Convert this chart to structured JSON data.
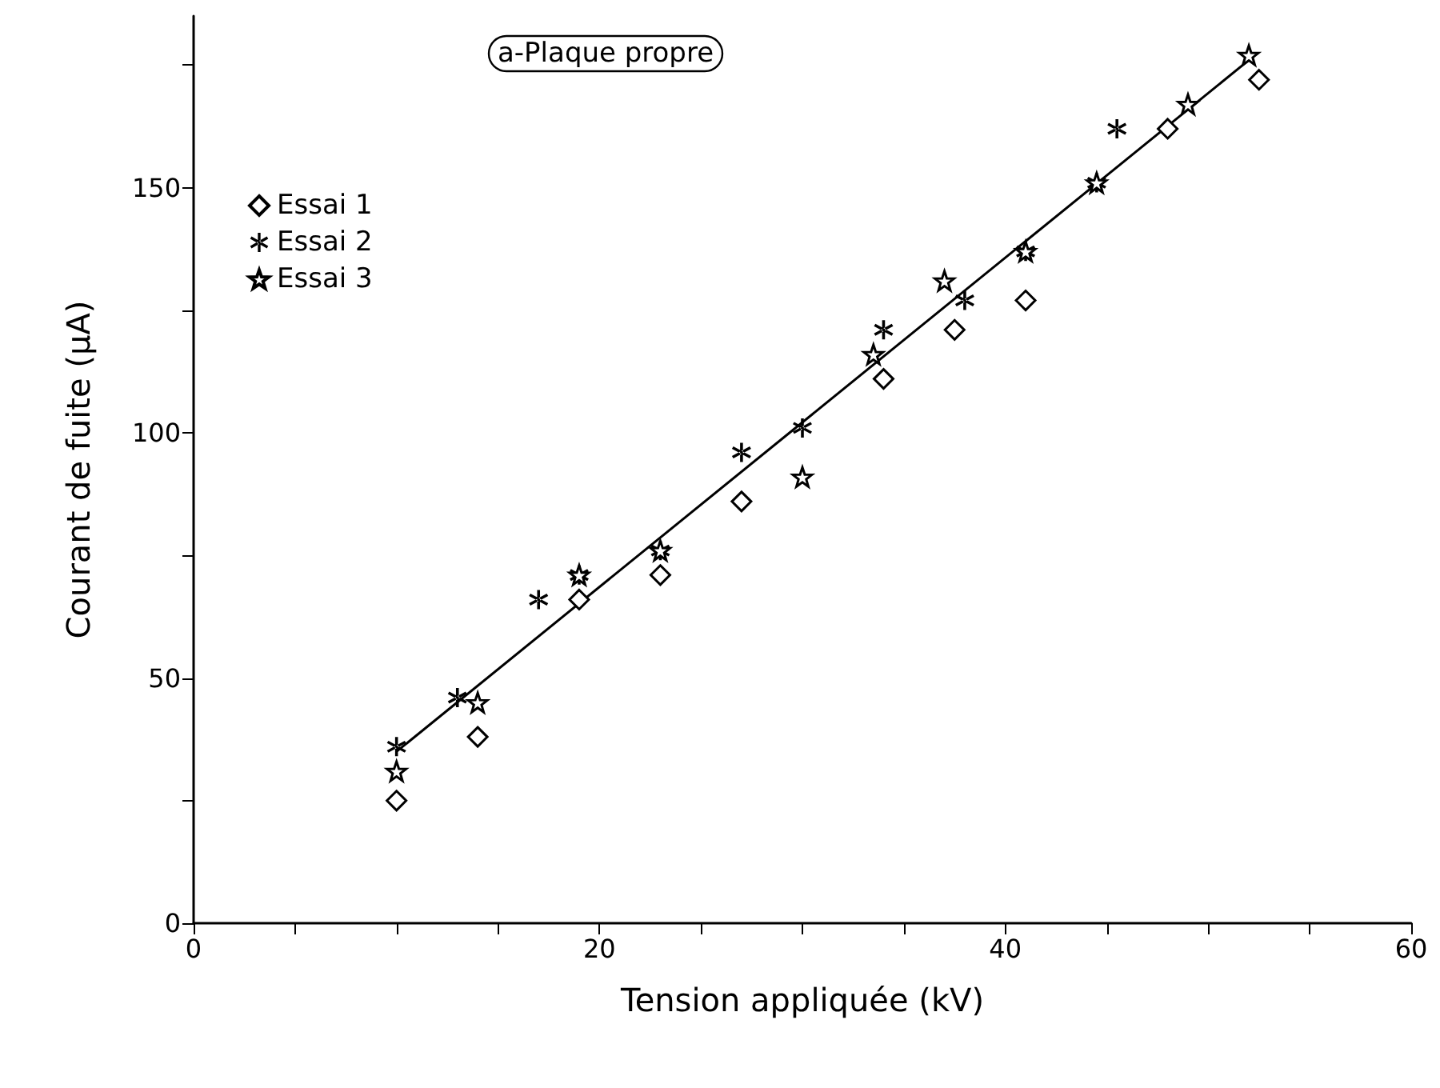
{
  "chart_data": {
    "type": "scatter",
    "title": "a-Plaque propre",
    "xlabel": "Tension appliquée (kV)",
    "ylabel": "Courant de fuite (µA)",
    "xlim": [
      0,
      60
    ],
    "xticks": [
      0,
      {
        "value": 5,
        "label": null
      },
      {
        "value": 10,
        "label": null
      },
      {
        "value": 15,
        "label": null
      },
      20,
      {
        "value": 25,
        "label": null
      },
      {
        "value": 30,
        "label": null
      },
      {
        "value": 35,
        "label": null
      },
      40,
      {
        "value": 45,
        "label": null
      },
      {
        "value": 50,
        "label": null
      },
      {
        "value": 55,
        "label": null
      },
      60
    ],
    "ylim": [
      0,
      185
    ],
    "yticks": [
      0,
      {
        "value": 25,
        "label": null
      },
      50,
      {
        "value": 75,
        "label": null
      },
      100,
      {
        "value": 125,
        "label": null
      },
      150,
      {
        "value": 175,
        "label": null
      }
    ],
    "grid": false,
    "legend": "top left",
    "series": [
      {
        "name": "Essai 1",
        "color": "#000000",
        "marker": "diamond",
        "x": [
          10,
          14,
          19,
          23,
          27,
          34,
          37.5,
          41,
          48,
          52.5
        ],
        "values": [
          25,
          38,
          66,
          71,
          86,
          111,
          121,
          127,
          162,
          172
        ]
      },
      {
        "name": "Essai 2",
        "color": "#000000",
        "marker": "cross",
        "x": [
          10,
          13,
          17,
          19,
          23,
          27,
          30,
          34,
          38,
          41,
          44.5,
          45.5
        ],
        "values": [
          36,
          46,
          66,
          71,
          76,
          96,
          101,
          121,
          127,
          137,
          151,
          162
        ]
      },
      {
        "name": "Essai 3",
        "color": "#000000",
        "marker": "star",
        "x": [
          10,
          14,
          19,
          23,
          30,
          33.5,
          37,
          41,
          44.5,
          49,
          52
        ],
        "values": [
          31,
          45,
          71,
          76,
          91,
          116,
          131,
          137,
          151,
          167,
          177
        ]
      },
      {
        "type": "line",
        "color": "#000000",
        "marker": "none",
        "line_style": "solid",
        "x": [
          10,
          52
        ],
        "values": [
          35,
          176
        ]
      }
    ]
  }
}
